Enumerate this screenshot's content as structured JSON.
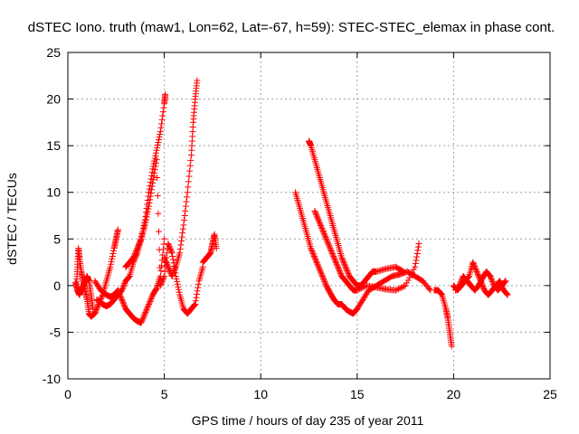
{
  "chart_data": {
    "type": "scatter",
    "title": "dSTEC Iono. truth (maw1, Lon=62, Lat=-67, h=59): STEC-STEC_elemax in phase cont.",
    "xlabel": "GPS time / hours of day 235 of year 2011",
    "ylabel": "dSTEC  / TECUs",
    "xlim": [
      0,
      25
    ],
    "ylim": [
      -10,
      25
    ],
    "x_ticks": [
      0,
      5,
      10,
      15,
      20,
      25
    ],
    "y_ticks": [
      -10,
      -5,
      0,
      5,
      10,
      15,
      20,
      25
    ],
    "grid": true,
    "marker": "+",
    "color": "#ff0000",
    "series": [
      {
        "x": [
          0.45,
          0.5,
          0.55,
          0.6,
          0.7,
          0.8,
          0.9,
          1.0,
          1.1,
          1.2
        ],
        "y": [
          0.2,
          2.0,
          4.0,
          3.0,
          1.5,
          0.5,
          -0.5,
          -1.5,
          -3.0,
          -3.3
        ]
      },
      {
        "x": [
          0.4,
          0.5,
          0.6,
          0.7,
          0.8,
          0.9,
          1.0,
          1.1,
          1.2,
          1.3
        ],
        "y": [
          0.3,
          -0.5,
          -1.0,
          -0.5,
          0.0,
          0.5,
          1.0,
          0.5,
          -1.0,
          -2.5
        ]
      },
      {
        "x": [
          1.2,
          1.4,
          1.6,
          1.8,
          2.0,
          2.2,
          2.4,
          2.5,
          2.6
        ],
        "y": [
          -3.3,
          -3.0,
          -2.0,
          -1.0,
          0.5,
          2.0,
          4.0,
          5.0,
          6.0
        ]
      },
      {
        "x": [
          1.4,
          1.7,
          2.0,
          2.2,
          2.4,
          2.6,
          2.8,
          3.0,
          3.2,
          3.4,
          3.6,
          3.8,
          4.0,
          4.2,
          4.4,
          4.6,
          4.8,
          5.0
        ],
        "y": [
          0.5,
          -0.5,
          -1.0,
          -1.2,
          -1.0,
          -0.5,
          -1.5,
          -2.5,
          -3.0,
          -3.5,
          -3.8,
          -4.0,
          -3.0,
          -2.0,
          -1.0,
          -0.3,
          1.0,
          5.0
        ]
      },
      {
        "x": [
          1.5,
          1.8,
          2.0,
          2.2,
          2.4,
          2.6,
          2.8,
          3.0,
          3.2,
          3.4,
          3.6,
          3.8,
          4.0,
          4.2,
          4.4,
          4.6,
          4.8,
          5.0,
          5.05
        ],
        "y": [
          -1.5,
          -2.0,
          -2.2,
          -2.0,
          -1.5,
          -1.0,
          -0.5,
          0.5,
          1.0,
          2.5,
          3.5,
          5.0,
          7.0,
          10.0,
          12.5,
          14.5,
          16.5,
          19.5,
          20.5
        ]
      },
      {
        "x": [
          3.0,
          3.2,
          3.4,
          3.6,
          3.8,
          4.0,
          4.2,
          4.4,
          4.6,
          4.8,
          5.0,
          5.2,
          5.4,
          5.6,
          5.8,
          6.0,
          6.2,
          6.4,
          6.6,
          6.8,
          7.0
        ],
        "y": [
          2.0,
          2.5,
          3.0,
          4.0,
          5.0,
          6.5,
          8.5,
          11.0,
          13.5,
          0.0,
          1.0,
          4.5,
          3.5,
          1.0,
          -1.0,
          -2.5,
          -3.0,
          -2.5,
          -2.0,
          0.5,
          2.0
        ]
      },
      {
        "x": [
          5.0,
          5.2,
          5.4,
          5.6,
          5.8,
          6.0,
          6.2,
          6.4,
          6.5,
          6.6,
          6.7
        ],
        "y": [
          3.0,
          2.0,
          1.0,
          2.0,
          3.5,
          6.5,
          10.0,
          14.0,
          17.5,
          20.0,
          22.0
        ]
      },
      {
        "x": [
          7.0,
          7.2,
          7.4,
          7.5,
          7.6,
          7.7
        ],
        "y": [
          2.5,
          3.0,
          3.5,
          4.5,
          5.5,
          4.0
        ]
      },
      {
        "x": [
          11.8,
          12.0,
          12.2,
          12.4,
          12.6,
          12.8,
          13.0,
          13.2,
          13.4,
          13.6,
          13.8,
          14.0,
          14.2,
          14.4,
          14.6,
          14.8,
          15.0
        ],
        "y": [
          10.0,
          8.5,
          7.0,
          5.5,
          4.0,
          3.0,
          2.0,
          1.0,
          0.0,
          -0.8,
          -1.5,
          -2.0,
          -2.0,
          -2.5,
          -2.8,
          -3.0,
          -2.5
        ]
      },
      {
        "x": [
          12.5,
          12.6,
          12.8,
          13.0,
          13.2,
          13.4,
          13.6,
          13.8,
          14.0,
          14.2,
          14.4,
          14.6,
          14.8,
          15.0,
          15.2,
          15.4,
          15.6,
          15.8,
          16.0,
          16.5,
          17.0,
          17.4
        ],
        "y": [
          15.5,
          15.0,
          13.5,
          12.0,
          10.5,
          9.0,
          7.5,
          6.0,
          4.5,
          3.0,
          2.0,
          1.0,
          0.5,
          0.0,
          0.0,
          0.5,
          1.0,
          1.5,
          1.5,
          1.8,
          2.0,
          1.5
        ]
      },
      {
        "x": [
          12.8,
          13.0,
          13.2,
          13.4,
          13.6,
          13.8,
          14.0,
          14.2,
          14.4,
          14.6,
          14.8,
          15.0,
          15.5,
          16.0,
          16.5,
          17.0,
          17.5,
          18.0,
          18.2
        ],
        "y": [
          8.0,
          7.0,
          6.0,
          5.0,
          4.0,
          3.0,
          2.0,
          1.0,
          0.5,
          0.0,
          -0.5,
          -0.5,
          0.0,
          -0.2,
          -0.4,
          -0.5,
          0.0,
          2.0,
          4.5
        ]
      },
      {
        "x": [
          15.0,
          15.3,
          15.6,
          16.0,
          16.4,
          16.8,
          17.2,
          17.6,
          18.0,
          18.4,
          18.8
        ],
        "y": [
          -2.5,
          -1.5,
          -0.5,
          0.0,
          0.5,
          1.0,
          1.2,
          1.5,
          1.0,
          0.5,
          -0.5
        ]
      },
      {
        "x": [
          19.0,
          19.2,
          19.4,
          19.6,
          19.7,
          19.8,
          19.9
        ],
        "y": [
          -0.5,
          -0.5,
          -1.0,
          -2.5,
          -3.5,
          -5.0,
          -6.5
        ]
      },
      {
        "x": [
          20.0,
          20.2,
          20.4,
          20.6,
          20.8,
          21.0,
          21.2,
          21.4,
          21.6,
          21.8,
          22.0,
          22.2,
          22.4,
          22.6,
          22.8
        ],
        "y": [
          0.0,
          -0.5,
          0.0,
          0.5,
          1.0,
          2.5,
          1.5,
          0.5,
          -0.5,
          -1.0,
          -0.5,
          0.0,
          0.5,
          -0.5,
          -1.0
        ]
      },
      {
        "x": [
          20.1,
          20.3,
          20.5,
          20.7,
          20.9,
          21.1,
          21.3,
          21.5,
          21.7,
          21.9,
          22.1,
          22.3,
          22.5,
          22.7
        ],
        "y": [
          -0.5,
          0.0,
          1.0,
          0.5,
          0.0,
          -0.5,
          0.0,
          0.8,
          1.5,
          1.0,
          0.0,
          -0.5,
          0.0,
          0.5
        ]
      }
    ]
  }
}
